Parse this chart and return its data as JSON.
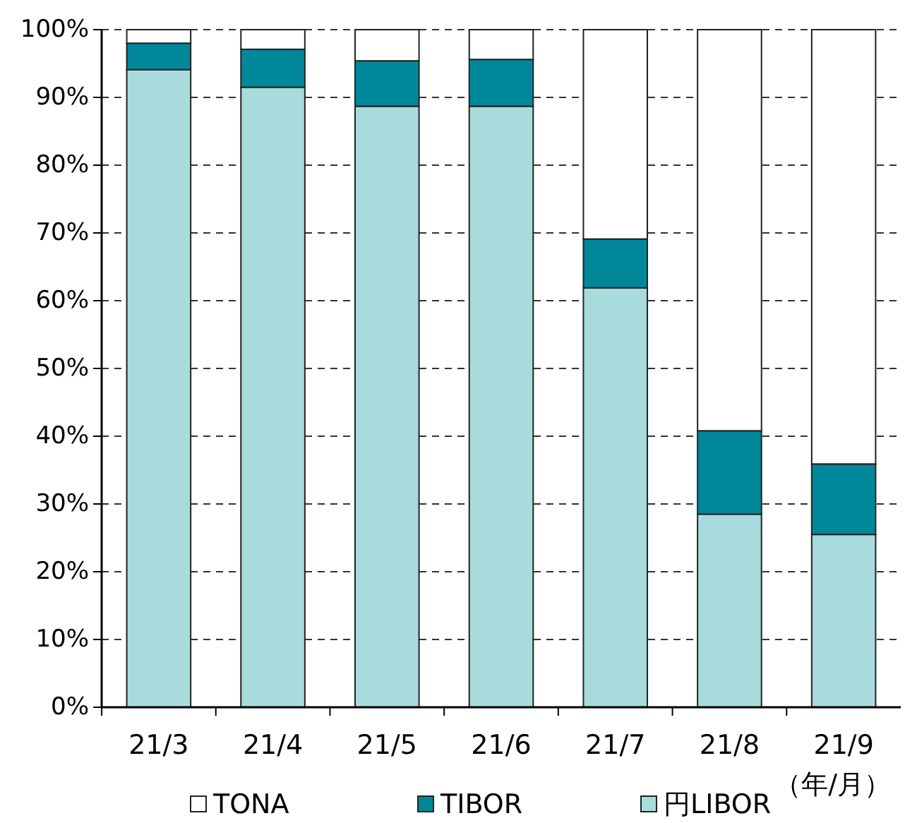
{
  "chart_data": {
    "type": "bar",
    "stacked": true,
    "categories": [
      "21/3",
      "21/4",
      "21/5",
      "21/6",
      "21/7",
      "21/8",
      "21/9"
    ],
    "xlabel": "（年/月）",
    "series": [
      {
        "name": "円LIBOR",
        "color": "#a8dcdc",
        "values": [
          94.1,
          91.5,
          88.7,
          88.7,
          61.9,
          28.5,
          25.5
        ]
      },
      {
        "name": "TIBOR",
        "color": "#00889a",
        "values": [
          3.9,
          5.6,
          6.7,
          6.9,
          7.2,
          12.3,
          10.4
        ]
      },
      {
        "name": "TONA",
        "color": "#ffffff",
        "values": [
          2.0,
          2.9,
          4.6,
          4.4,
          30.9,
          59.2,
          64.1
        ]
      }
    ],
    "ylim": [
      0,
      100
    ],
    "yticks": [
      {
        "value": 0,
        "label": "0%"
      },
      {
        "value": 10,
        "label": "10%"
      },
      {
        "value": 20,
        "label": "20%"
      },
      {
        "value": 30,
        "label": "30%"
      },
      {
        "value": 40,
        "label": "40%"
      },
      {
        "value": 50,
        "label": "50%"
      },
      {
        "value": 60,
        "label": "60%"
      },
      {
        "value": 70,
        "label": "70%"
      },
      {
        "value": 80,
        "label": "80%"
      },
      {
        "value": 90,
        "label": "90%"
      },
      {
        "value": 100,
        "label": "100%"
      }
    ],
    "grid": "y",
    "legend": "bottom"
  }
}
